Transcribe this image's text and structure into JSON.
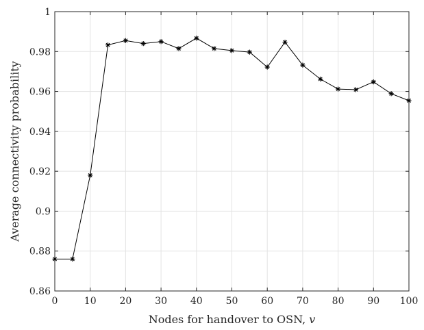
{
  "chart_data": {
    "type": "line",
    "title": "",
    "xlabel": "Nodes for handover to OSN,",
    "xlabel_var": "v",
    "ylabel": "Average connectivity probability",
    "xlim": [
      0,
      100
    ],
    "ylim": [
      0.86,
      1
    ],
    "xticks": [
      "0",
      "10",
      "20",
      "30",
      "40",
      "50",
      "60",
      "70",
      "80",
      "90",
      "100"
    ],
    "yticks": [
      "0.86",
      "0.88",
      "0.9",
      "0.92",
      "0.94",
      "0.96",
      "0.98",
      "1"
    ],
    "grid": true,
    "marker": "asterisk",
    "series": [
      {
        "color": "#000000",
        "x": [
          0,
          5,
          10,
          15,
          20,
          25,
          30,
          35,
          40,
          45,
          50,
          55,
          60,
          65,
          70,
          75,
          80,
          85,
          90,
          95,
          100
        ],
        "values": [
          0.876,
          0.876,
          0.918,
          0.9833,
          0.9855,
          0.984,
          0.985,
          0.9815,
          0.9867,
          0.9815,
          0.9805,
          0.9797,
          0.9722,
          0.9847,
          0.9732,
          0.9662,
          0.9612,
          0.9609,
          0.9648,
          0.9589,
          0.9554
        ]
      }
    ]
  }
}
